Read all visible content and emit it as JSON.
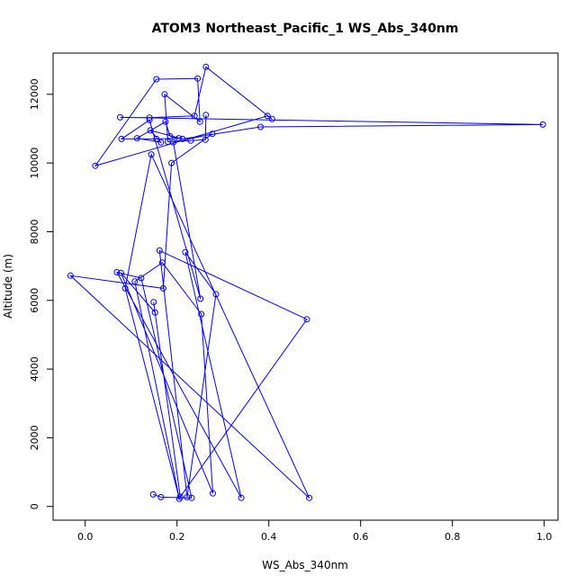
{
  "chart_data": {
    "type": "line",
    "title": "ATOM3 Northeast_Pacific_1 WS_Abs_340nm",
    "xlabel": "WS_Abs_340nm",
    "ylabel": "Altitude (m)",
    "xlim": [
      -0.07,
      1.03
    ],
    "ylim": [
      -400,
      13200
    ],
    "x_ticks": [
      0.0,
      0.2,
      0.4,
      0.6,
      0.8,
      1.0
    ],
    "x_tick_labels": [
      "0.0",
      "0.2",
      "0.4",
      "0.6",
      "0.8",
      "1.0"
    ],
    "y_ticks": [
      0,
      2000,
      4000,
      6000,
      8000,
      10000,
      12000
    ],
    "y_tick_labels": [
      "0",
      "2000",
      "4000",
      "6000",
      "8000",
      "10000",
      "12000"
    ],
    "grid": false,
    "series": [
      {
        "color": "#0000ff",
        "marker": "open-circle",
        "x": [
          0.148,
          0.165,
          0.232,
          0.122,
          0.069,
          0.34,
          0.218,
          0.285,
          0.222,
          0.162,
          0.483,
          0.207,
          0.149,
          0.152,
          0.078,
          0.278,
          0.253,
          0.168,
          0.108,
          0.205,
          0.087,
          0.144,
          0.488,
          -0.032,
          0.17,
          0.188,
          0.277,
          0.192,
          0.251,
          0.14,
          0.079,
          0.155,
          0.204,
          0.185,
          0.175,
          0.113,
          0.165,
          0.142,
          0.212,
          0.382,
          0.997,
          0.076,
          0.14,
          0.238,
          0.263,
          0.407,
          0.397,
          0.022,
          0.155,
          0.245,
          0.25,
          0.173,
          0.18,
          0.23,
          0.262,
          0.263
        ],
        "y": [
          350,
          270,
          250,
          6650,
          6820,
          250,
          7400,
          6180,
          270,
          7450,
          5450,
          280,
          5950,
          5650,
          6800,
          380,
          5600,
          7100,
          6550,
          220,
          6350,
          10250,
          250,
          6720,
          6350,
          10000,
          10850,
          10600,
          6050,
          11250,
          10700,
          10700,
          10720,
          10780,
          11200,
          10720,
          10600,
          10950,
          10700,
          11050,
          11120,
          11330,
          11320,
          11370,
          12800,
          11280,
          11370,
          9920,
          12440,
          12460,
          11200,
          12000,
          10620,
          10650,
          10680,
          11400
        ]
      }
    ]
  }
}
